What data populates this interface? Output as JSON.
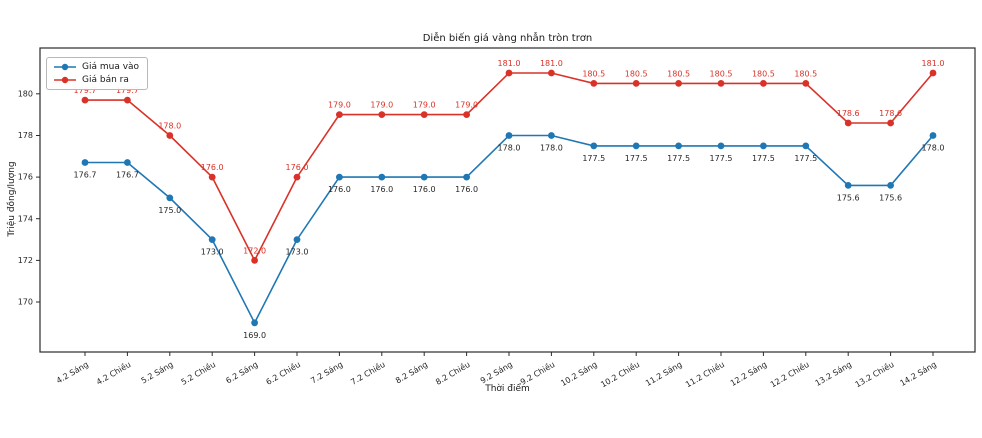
{
  "chart_data": {
    "type": "line",
    "title": "Diễn biến giá vàng nhẫn tròn trơn",
    "xlabel": "Thời điểm",
    "ylabel": "Triệu đồng/lượng",
    "categories": [
      "4.2 Sáng",
      "4.2 Chiều",
      "5.2 Sáng",
      "5.2 Chiều",
      "6.2 Sáng",
      "6.2 Chiều",
      "7.2 Sáng",
      "7.2 Chiều",
      "8.2 Sáng",
      "8.2 Chiều",
      "9.2 Sáng",
      "9.2 Chiều",
      "10.2 Sáng",
      "10.2 Chiều",
      "11.2 Sáng",
      "11.2 Chiều",
      "12.2 Sáng",
      "12.2 Chiều",
      "13.2 Sáng",
      "13.2 Chiều",
      "14.2 Sáng"
    ],
    "series": [
      {
        "name": "Giá mua vào",
        "color": "#1f77b4",
        "label_color": "#262626",
        "label_position": "below",
        "values": [
          176.7,
          176.7,
          175.0,
          173.0,
          169.0,
          173.0,
          176.0,
          176.0,
          176.0,
          176.0,
          178.0,
          178.0,
          177.5,
          177.5,
          177.5,
          177.5,
          177.5,
          177.5,
          175.6,
          175.6,
          178.0
        ]
      },
      {
        "name": "Giá bán ra",
        "color": "#d93228",
        "label_color": "#d93228",
        "label_position": "above",
        "values": [
          179.7,
          179.7,
          178.0,
          176.0,
          172.0,
          176.0,
          179.0,
          179.0,
          179.0,
          179.0,
          181.0,
          181.0,
          180.5,
          180.5,
          180.5,
          180.5,
          180.5,
          180.5,
          178.6,
          178.6,
          181.0
        ]
      }
    ],
    "yticks": [
      170,
      172,
      174,
      176,
      178,
      180
    ],
    "ylim": [
      167.6,
      182.2
    ],
    "legend_position": "upper left",
    "grid": false,
    "point_labels": true
  }
}
